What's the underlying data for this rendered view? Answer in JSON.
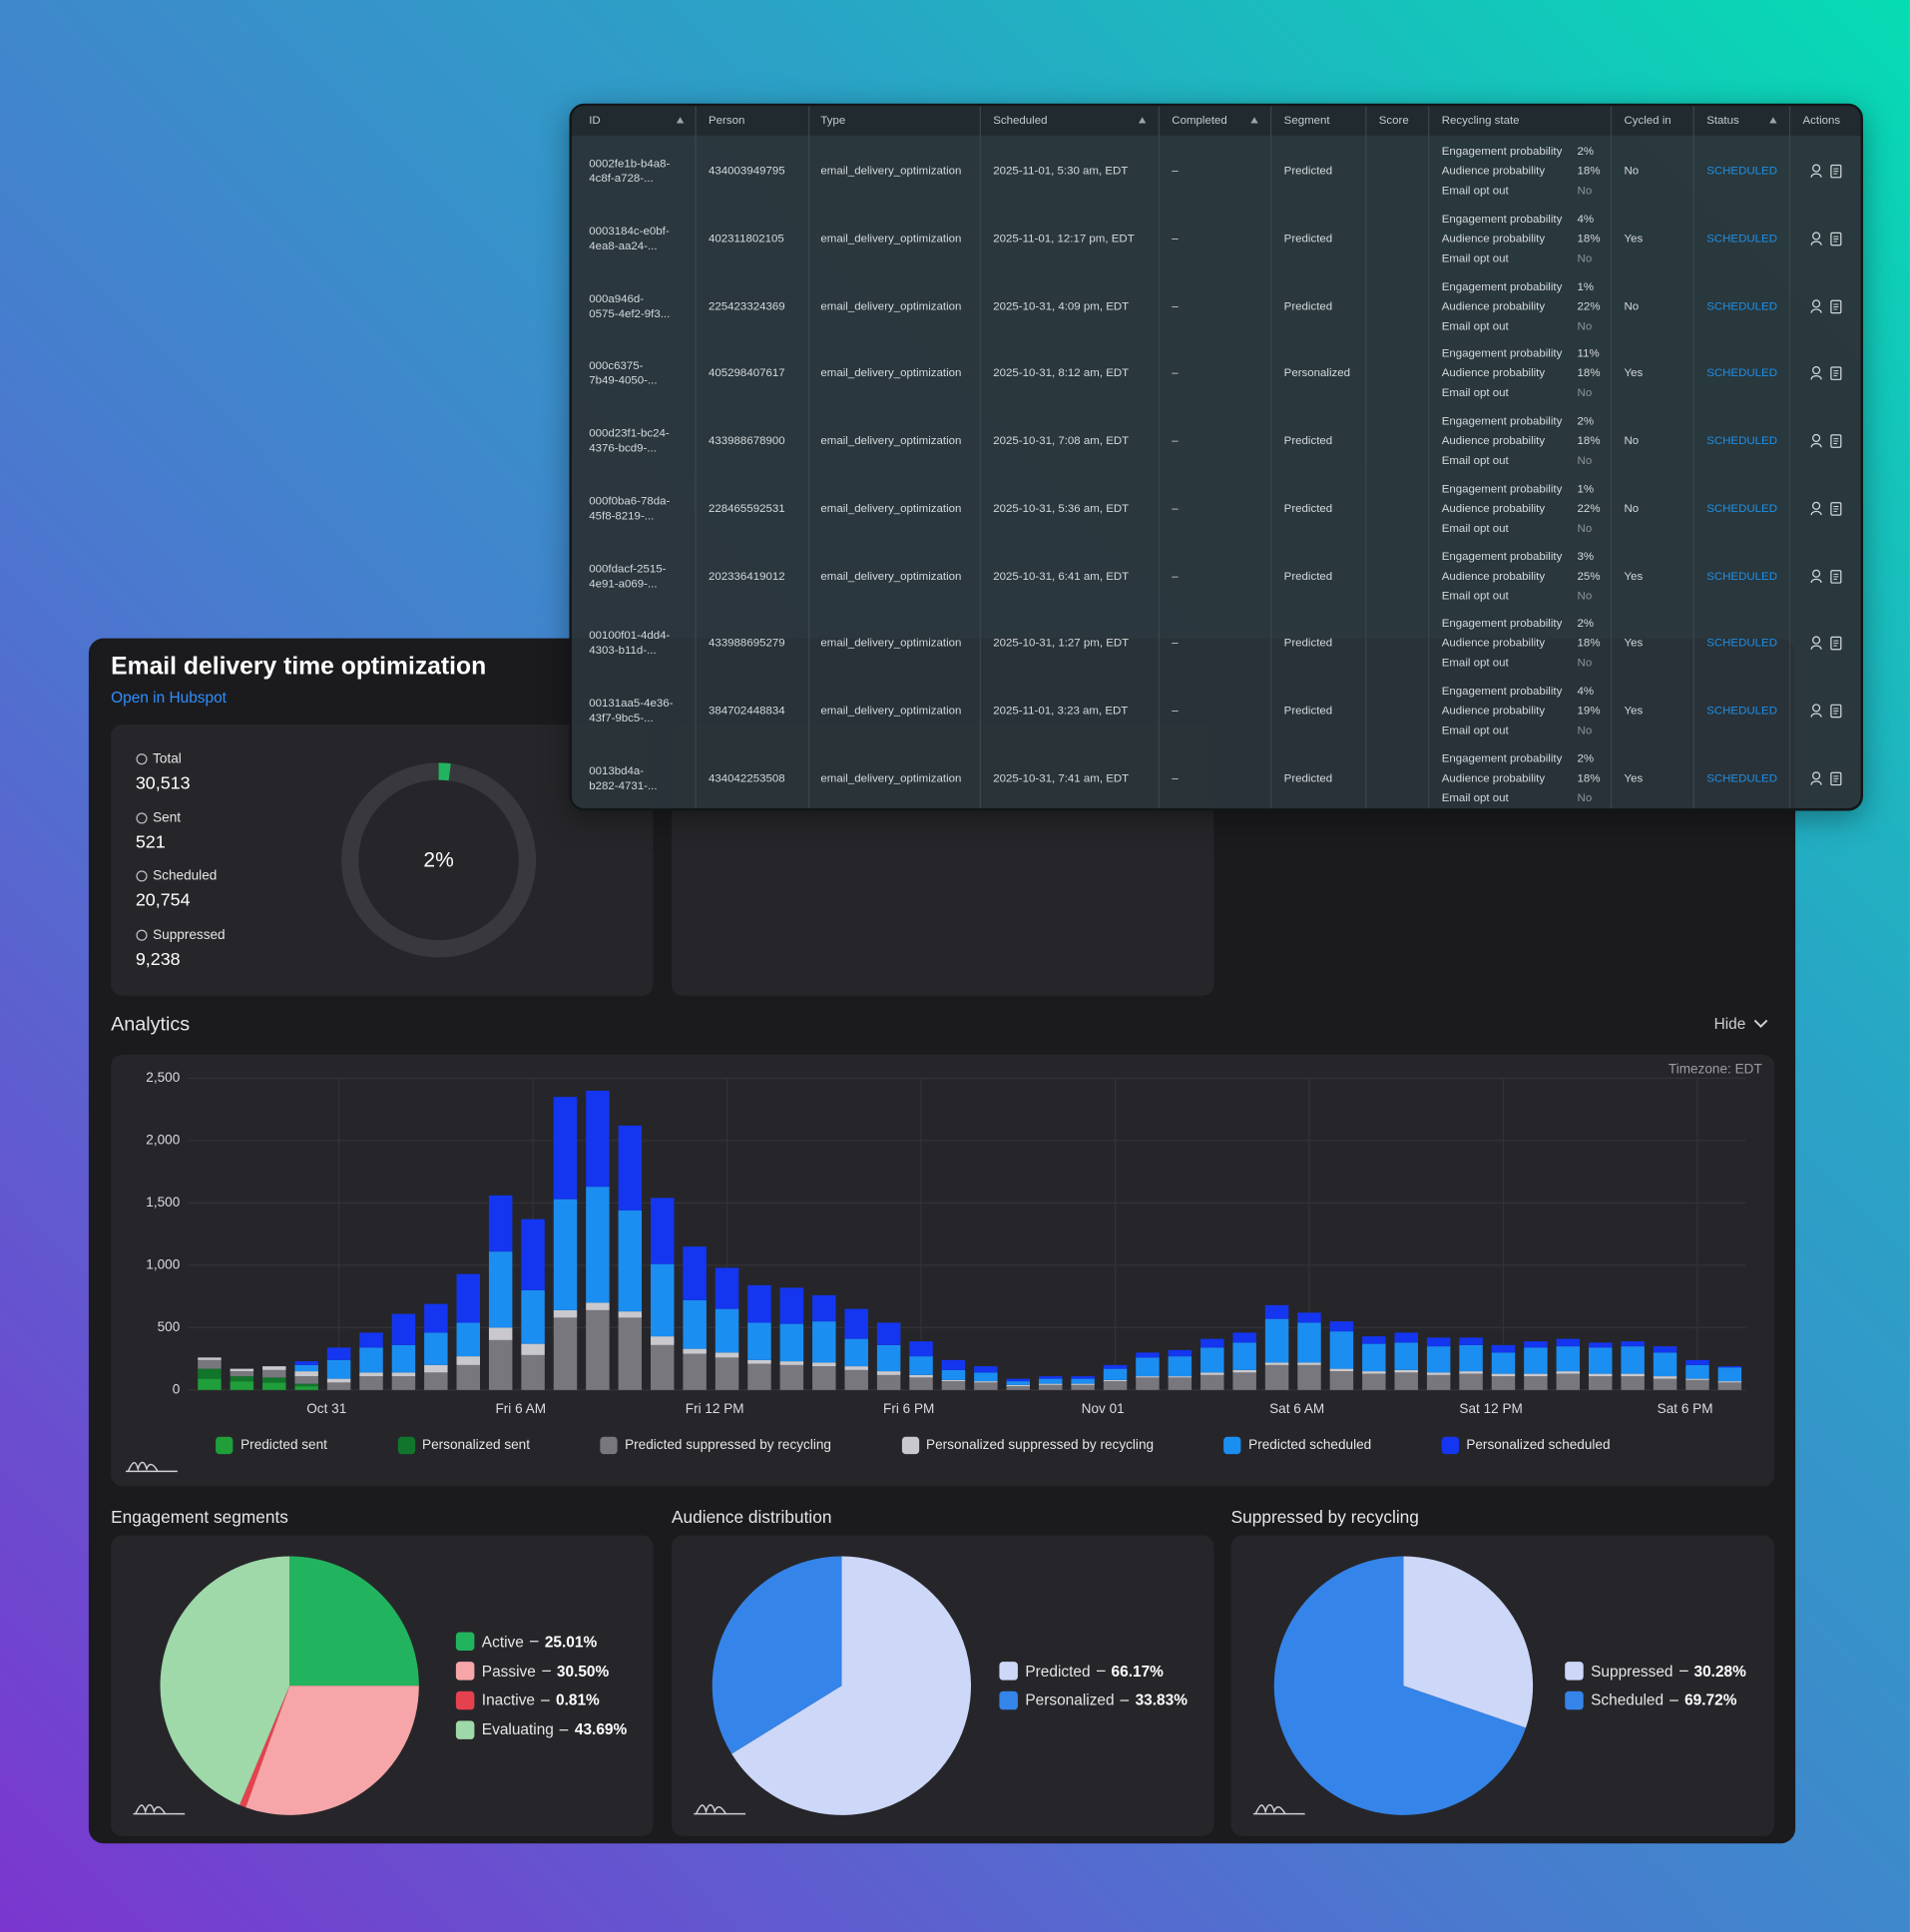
{
  "header": {
    "title": "Email delivery time optimization",
    "link": "Open in Hubspot"
  },
  "stats": [
    {
      "label": "Total",
      "value": "30,513"
    },
    {
      "label": "Sent",
      "value": "521"
    },
    {
      "label": "Scheduled",
      "value": "20,754"
    },
    {
      "label": "Suppressed",
      "value": "9,238"
    }
  ],
  "analytics": {
    "toggle": "Hide"
  },
  "table": {
    "columns": [
      "ID",
      "Person",
      "Type",
      "Scheduled",
      "Completed",
      "Segment",
      "Score",
      "Recycling state",
      "Cycled in",
      "Status",
      "Actions"
    ],
    "recycling_labels": [
      "Engagement probability",
      "Audience probability",
      "Email opt out"
    ],
    "rows": [
      {
        "id": [
          "0002fe1b-b4a8-",
          "4c8f-a728-..."
        ],
        "person": "434003949795",
        "type": "email_delivery_optimization",
        "scheduled": "2025-11-01, 5:30 am, EDT",
        "completed": "–",
        "segment": "Predicted",
        "recycling": [
          "2%",
          "18%",
          "No"
        ],
        "cycled": "No",
        "status": "SCHEDULED"
      },
      {
        "id": [
          "0003184c-e0bf-",
          "4ea8-aa24-..."
        ],
        "person": "402311802105",
        "type": "email_delivery_optimization",
        "scheduled": "2025-11-01, 12:17 pm, EDT",
        "completed": "–",
        "segment": "Predicted",
        "recycling": [
          "4%",
          "18%",
          "No"
        ],
        "cycled": "Yes",
        "status": "SCHEDULED"
      },
      {
        "id": [
          "000a946d-",
          "0575-4ef2-9f3..."
        ],
        "person": "225423324369",
        "type": "email_delivery_optimization",
        "scheduled": "2025-10-31, 4:09 pm, EDT",
        "completed": "–",
        "segment": "Predicted",
        "recycling": [
          "1%",
          "22%",
          "No"
        ],
        "cycled": "No",
        "status": "SCHEDULED"
      },
      {
        "id": [
          "000c6375-",
          "7b49-4050-..."
        ],
        "person": "405298407617",
        "type": "email_delivery_optimization",
        "scheduled": "2025-10-31, 8:12 am, EDT",
        "completed": "–",
        "segment": "Personalized",
        "recycling": [
          "11%",
          "18%",
          "No"
        ],
        "cycled": "Yes",
        "status": "SCHEDULED"
      },
      {
        "id": [
          "000d23f1-bc24-",
          "4376-bcd9-..."
        ],
        "person": "433988678900",
        "type": "email_delivery_optimization",
        "scheduled": "2025-10-31, 7:08 am, EDT",
        "completed": "–",
        "segment": "Predicted",
        "recycling": [
          "2%",
          "18%",
          "No"
        ],
        "cycled": "No",
        "status": "SCHEDULED"
      },
      {
        "id": [
          "000f0ba6-78da-",
          "45f8-8219-..."
        ],
        "person": "228465592531",
        "type": "email_delivery_optimization",
        "scheduled": "2025-10-31, 5:36 am, EDT",
        "completed": "–",
        "segment": "Predicted",
        "recycling": [
          "1%",
          "22%",
          "No"
        ],
        "cycled": "No",
        "status": "SCHEDULED"
      },
      {
        "id": [
          "000fdacf-2515-",
          "4e91-a069-..."
        ],
        "person": "202336419012",
        "type": "email_delivery_optimization",
        "scheduled": "2025-10-31, 6:41 am, EDT",
        "completed": "–",
        "segment": "Predicted",
        "recycling": [
          "3%",
          "25%",
          "No"
        ],
        "cycled": "Yes",
        "status": "SCHEDULED"
      },
      {
        "id": [
          "00100f01-4dd4-",
          "4303-b11d-..."
        ],
        "person": "433988695279",
        "type": "email_delivery_optimization",
        "scheduled": "2025-10-31, 1:27 pm, EDT",
        "completed": "–",
        "segment": "Predicted",
        "recycling": [
          "2%",
          "18%",
          "No"
        ],
        "cycled": "Yes",
        "status": "SCHEDULED"
      },
      {
        "id": [
          "00131aa5-4e36-",
          "43f7-9bc5-..."
        ],
        "person": "384702448834",
        "type": "email_delivery_optimization",
        "scheduled": "2025-11-01, 3:23 am, EDT",
        "completed": "–",
        "segment": "Predicted",
        "recycling": [
          "4%",
          "19%",
          "No"
        ],
        "cycled": "Yes",
        "status": "SCHEDULED"
      },
      {
        "id": [
          "0013bd4a-",
          "b282-4731-..."
        ],
        "person": "434042253508",
        "type": "email_delivery_optimization",
        "scheduled": "2025-10-31, 7:41 am, EDT",
        "completed": "–",
        "segment": "Predicted",
        "recycling": [
          "2%",
          "18%",
          "No"
        ],
        "cycled": "Yes",
        "status": "SCHEDULED"
      }
    ]
  },
  "chart_data": [
    {
      "type": "donut",
      "values": [
        2
      ],
      "value_labels": [
        "2%"
      ],
      "color": "#22b35e"
    },
    {
      "type": "bar",
      "stacked": true,
      "title": "Analytics",
      "annotation": "Timezone: EDT",
      "grid": true,
      "legend": "bottom",
      "categories": [
        null,
        null,
        null,
        null,
        "Oct 31",
        null,
        null,
        null,
        null,
        null,
        "Fri 6 AM",
        null,
        null,
        null,
        null,
        null,
        "Fri 12 PM",
        null,
        null,
        null,
        null,
        null,
        "Fri 6 PM",
        null,
        null,
        null,
        null,
        null,
        "Nov 01",
        null,
        null,
        null,
        null,
        null,
        "Sat 6 AM",
        null,
        null,
        null,
        null,
        null,
        "Sat 12 PM",
        null,
        null,
        null,
        null,
        null,
        "Sat 6 PM",
        null
      ],
      "ylim": [
        0,
        2500
      ],
      "yticks": [
        0,
        500,
        {
          "value": 1000,
          "label": "1,000"
        },
        {
          "value": 1500,
          "label": "1,500"
        },
        {
          "value": 2000,
          "label": "2,000"
        },
        {
          "value": 2500,
          "label": "2,500"
        }
      ],
      "series": [
        {
          "name": "Predicted sent",
          "color": "#1f9e3a",
          "values": [
            90,
            70,
            60,
            30,
            0,
            0,
            0,
            0,
            0,
            0,
            0,
            0,
            0,
            0,
            0,
            0,
            0,
            0,
            0,
            0,
            0,
            0,
            0,
            0,
            0,
            0,
            0,
            0,
            0,
            0,
            0,
            0,
            0,
            0,
            0,
            0,
            0,
            0,
            0,
            0,
            0,
            0,
            0,
            0,
            0,
            0,
            0,
            0
          ]
        },
        {
          "name": "Personalized sent",
          "color": "#11752b",
          "values": [
            80,
            40,
            40,
            20,
            0,
            0,
            0,
            0,
            0,
            0,
            0,
            0,
            0,
            0,
            0,
            0,
            0,
            0,
            0,
            0,
            0,
            0,
            0,
            0,
            0,
            0,
            0,
            0,
            0,
            0,
            0,
            0,
            0,
            0,
            0,
            0,
            0,
            0,
            0,
            0,
            0,
            0,
            0,
            0,
            0,
            0,
            0,
            0
          ]
        },
        {
          "name": "Predicted suppressed by recycling",
          "color": "#77777d",
          "values": [
            70,
            40,
            60,
            60,
            60,
            110,
            110,
            140,
            200,
            400,
            280,
            580,
            640,
            580,
            360,
            290,
            260,
            210,
            200,
            190,
            160,
            120,
            100,
            70,
            60,
            30,
            40,
            40,
            70,
            100,
            100,
            120,
            140,
            200,
            200,
            150,
            130,
            140,
            120,
            130,
            110,
            110,
            130,
            110,
            110,
            90,
            80,
            60
          ]
        },
        {
          "name": "Personalized suppressed by recycling",
          "color": "#c9c9cd",
          "values": [
            20,
            20,
            30,
            40,
            30,
            30,
            30,
            60,
            70,
            100,
            90,
            60,
            60,
            50,
            70,
            40,
            40,
            30,
            30,
            30,
            30,
            30,
            20,
            10,
            10,
            10,
            10,
            10,
            10,
            10,
            10,
            20,
            20,
            20,
            20,
            20,
            20,
            20,
            20,
            20,
            20,
            20,
            20,
            20,
            20,
            20,
            10,
            10
          ]
        },
        {
          "name": "Predicted scheduled",
          "color": "#1b8ef2",
          "values": [
            0,
            0,
            0,
            50,
            150,
            200,
            220,
            260,
            270,
            610,
            430,
            890,
            930,
            810,
            580,
            390,
            350,
            300,
            300,
            330,
            220,
            210,
            150,
            80,
            70,
            30,
            40,
            40,
            90,
            150,
            160,
            200,
            220,
            350,
            320,
            300,
            220,
            220,
            210,
            210,
            170,
            210,
            200,
            210,
            220,
            190,
            110,
            110
          ]
        },
        {
          "name": "Personalized scheduled",
          "color": "#1436f0",
          "values": [
            0,
            0,
            0,
            30,
            100,
            120,
            250,
            230,
            390,
            450,
            570,
            820,
            770,
            680,
            530,
            430,
            330,
            300,
            290,
            210,
            240,
            180,
            120,
            80,
            50,
            20,
            20,
            20,
            30,
            40,
            50,
            70,
            80,
            110,
            80,
            80,
            60,
            80,
            70,
            60,
            60,
            50,
            60,
            40,
            40,
            50,
            40,
            10
          ]
        }
      ]
    },
    {
      "type": "pie",
      "title": "Engagement segments",
      "categories": [
        "Active",
        "Passive",
        "Inactive",
        "Evaluating"
      ],
      "values": [
        25.01,
        30.5,
        0.81,
        43.69
      ],
      "value_labels": [
        "25.01%",
        "30.50%",
        "0.81%",
        "43.69%"
      ],
      "colors": [
        "#22b35e",
        "#f6a5a8",
        "#e5414f",
        "#9fd8a9"
      ]
    },
    {
      "type": "pie",
      "title": "Audience distribution",
      "categories": [
        "Predicted",
        "Personalized"
      ],
      "values": [
        66.17,
        33.83
      ],
      "value_labels": [
        "66.17%",
        "33.83%"
      ],
      "colors": [
        "#cdd7f8",
        "#3584ea"
      ]
    },
    {
      "type": "pie",
      "title": "Suppressed by recycling",
      "categories": [
        "Suppressed",
        "Scheduled"
      ],
      "values": [
        30.28,
        69.72
      ],
      "value_labels": [
        "30.28%",
        "69.72%"
      ],
      "colors": [
        "#cdd7f8",
        "#3584ea"
      ]
    }
  ]
}
